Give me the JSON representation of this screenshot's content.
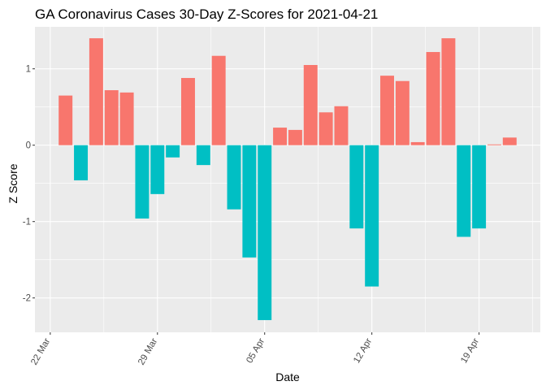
{
  "chart_data": {
    "type": "bar",
    "title": "GA Coronavirus Cases 30-Day Z-Scores for 2021-04-21",
    "xlabel": "Date",
    "ylabel": "Z Score",
    "xlim": [
      -1,
      32
    ],
    "ylim": [
      -2.45,
      1.55
    ],
    "x_ticks": [
      {
        "day": 0,
        "label": "22 Mar"
      },
      {
        "day": 7,
        "label": "29 Mar"
      },
      {
        "day": 14,
        "label": "05 Apr"
      },
      {
        "day": 21,
        "label": "12 Apr"
      },
      {
        "day": 28,
        "label": "19 Apr"
      }
    ],
    "y_ticks": [
      -2,
      -1,
      0,
      1
    ],
    "colors": {
      "positive": "#F8766D",
      "negative": "#00BFC4",
      "panel": "#EBEBEB",
      "grid": "#FFFFFF"
    },
    "dates": [
      "2021-03-23",
      "2021-03-24",
      "2021-03-25",
      "2021-03-26",
      "2021-03-27",
      "2021-03-28",
      "2021-03-29",
      "2021-03-30",
      "2021-03-31",
      "2021-04-01",
      "2021-04-02",
      "2021-04-03",
      "2021-04-04",
      "2021-04-05",
      "2021-04-06",
      "2021-04-07",
      "2021-04-08",
      "2021-04-09",
      "2021-04-10",
      "2021-04-11",
      "2021-04-12",
      "2021-04-13",
      "2021-04-14",
      "2021-04-15",
      "2021-04-16",
      "2021-04-17",
      "2021-04-18",
      "2021-04-19",
      "2021-04-20",
      "2021-04-21"
    ],
    "values": [
      0.65,
      -0.46,
      1.4,
      0.72,
      0.69,
      -0.96,
      -0.64,
      -0.16,
      0.88,
      -0.26,
      1.17,
      -0.84,
      -1.47,
      -2.29,
      0.23,
      0.2,
      1.05,
      0.43,
      0.51,
      -1.09,
      -1.85,
      0.91,
      0.84,
      0.04,
      1.22,
      1.4,
      -1.2,
      -1.09,
      0.01,
      0.1
    ]
  }
}
